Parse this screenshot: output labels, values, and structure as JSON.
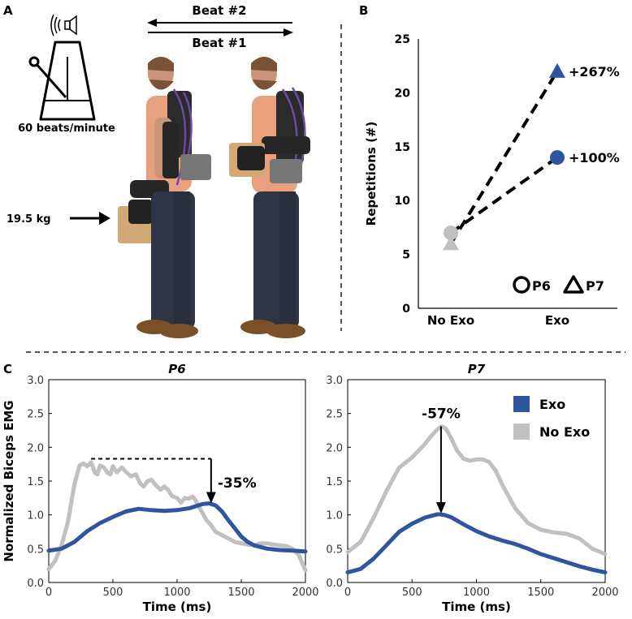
{
  "panels": {
    "a": {
      "letter": "A",
      "beat2": "Beat #2",
      "beat1": "Beat #1",
      "tempo": "60 beats/minute",
      "load": "19.5 kg"
    },
    "b": {
      "letter": "B"
    },
    "c": {
      "letter": "C"
    }
  },
  "chart_data": [
    {
      "type": "scatter",
      "panel": "B",
      "categories": [
        "No Exo",
        "Exo"
      ],
      "ylabel": "Repetitions (#)",
      "ylim": [
        0,
        25
      ],
      "yticks": [
        0,
        5,
        10,
        15,
        20,
        25
      ],
      "series": [
        {
          "name": "P6",
          "marker": "circle",
          "values": [
            7,
            14
          ],
          "annotation": "+100%"
        },
        {
          "name": "P7",
          "marker": "triangle",
          "values": [
            6,
            22
          ],
          "annotation": "+267%"
        }
      ],
      "colors": {
        "no_exo": "#c0c0c0",
        "exo": "#2f55a0",
        "connector": "#000000"
      },
      "legend_placement": "bottom-right",
      "grid": false
    },
    {
      "type": "line",
      "panel": "C",
      "title": "P6",
      "xlabel": "Time (ms)",
      "ylabel": "Normalized Biceps EMG",
      "xlim": [
        0,
        2000
      ],
      "ylim": [
        0,
        3.0
      ],
      "xticks": [
        0,
        500,
        1000,
        1500,
        2000
      ],
      "yticks": [
        0,
        0.5,
        1.0,
        1.5,
        2.0,
        2.5,
        3.0
      ],
      "annotation": "-35%",
      "reference": {
        "x_start": 330,
        "x_end": 1265,
        "y_from": 1.83,
        "y_to": 1.17
      },
      "series": [
        {
          "name": "No Exo",
          "color": "#c0c0c0",
          "x": [
            0,
            50,
            100,
            150,
            200,
            240,
            270,
            300,
            330,
            360,
            380,
            400,
            430,
            460,
            480,
            500,
            530,
            570,
            600,
            640,
            680,
            710,
            740,
            770,
            800,
            830,
            870,
            900,
            930,
            960,
            1000,
            1030,
            1060,
            1090,
            1120,
            1140,
            1170,
            1200,
            1230,
            1260,
            1300,
            1350,
            1400,
            1450,
            1500,
            1550,
            1600,
            1650,
            1700,
            1750,
            1800,
            1850,
            1900,
            1950,
            2000
          ],
          "y": [
            0.2,
            0.32,
            0.55,
            0.9,
            1.45,
            1.73,
            1.76,
            1.72,
            1.78,
            1.62,
            1.6,
            1.73,
            1.7,
            1.62,
            1.6,
            1.72,
            1.63,
            1.7,
            1.64,
            1.57,
            1.6,
            1.47,
            1.42,
            1.5,
            1.52,
            1.45,
            1.37,
            1.42,
            1.37,
            1.28,
            1.25,
            1.18,
            1.25,
            1.24,
            1.27,
            1.23,
            1.12,
            1.02,
            0.92,
            0.86,
            0.75,
            0.7,
            0.65,
            0.6,
            0.58,
            0.56,
            0.55,
            0.58,
            0.58,
            0.56,
            0.55,
            0.54,
            0.5,
            0.4,
            0.18
          ]
        },
        {
          "name": "Exo",
          "color": "#2f55a0",
          "x": [
            0,
            100,
            200,
            300,
            400,
            500,
            600,
            700,
            800,
            900,
            1000,
            1100,
            1150,
            1200,
            1250,
            1300,
            1350,
            1400,
            1450,
            1500,
            1550,
            1600,
            1700,
            1800,
            1900,
            2000
          ],
          "y": [
            0.47,
            0.5,
            0.6,
            0.76,
            0.88,
            0.97,
            1.05,
            1.09,
            1.07,
            1.06,
            1.07,
            1.1,
            1.13,
            1.16,
            1.17,
            1.14,
            1.05,
            0.92,
            0.8,
            0.68,
            0.6,
            0.55,
            0.5,
            0.48,
            0.47,
            0.46
          ]
        }
      ]
    },
    {
      "type": "line",
      "panel": "C",
      "title": "P7",
      "xlabel": "Time (ms)",
      "ylabel": "",
      "xlim": [
        0,
        2000
      ],
      "ylim": [
        0,
        3.0
      ],
      "xticks": [
        0,
        500,
        1000,
        1500,
        2000
      ],
      "yticks": [
        0,
        0.5,
        1.0,
        1.5,
        2.0,
        2.5,
        3.0
      ],
      "annotation": "-57%",
      "reference": {
        "x": 725,
        "y_from": 2.31,
        "y_to": 1.02
      },
      "legend_placement": "top-right",
      "series": [
        {
          "name": "Exo",
          "color": "#2f55a0",
          "x": [
            0,
            100,
            200,
            300,
            400,
            500,
            600,
            700,
            750,
            800,
            900,
            1000,
            1100,
            1200,
            1300,
            1400,
            1500,
            1600,
            1700,
            1800,
            1900,
            2000
          ],
          "y": [
            0.15,
            0.2,
            0.35,
            0.55,
            0.75,
            0.87,
            0.96,
            1.01,
            1.0,
            0.97,
            0.86,
            0.76,
            0.68,
            0.62,
            0.57,
            0.5,
            0.42,
            0.36,
            0.3,
            0.24,
            0.19,
            0.15
          ]
        },
        {
          "name": "No Exo",
          "color": "#c0c0c0",
          "x": [
            0,
            100,
            200,
            300,
            400,
            500,
            600,
            650,
            700,
            730,
            760,
            800,
            850,
            900,
            950,
            1000,
            1050,
            1100,
            1150,
            1200,
            1300,
            1400,
            1500,
            1600,
            1700,
            1800,
            1900,
            2000
          ],
          "y": [
            0.45,
            0.6,
            0.95,
            1.35,
            1.7,
            1.85,
            2.05,
            2.17,
            2.27,
            2.31,
            2.28,
            2.15,
            1.95,
            1.83,
            1.8,
            1.82,
            1.82,
            1.78,
            1.65,
            1.45,
            1.1,
            0.88,
            0.78,
            0.74,
            0.72,
            0.65,
            0.5,
            0.42
          ]
        }
      ]
    }
  ]
}
